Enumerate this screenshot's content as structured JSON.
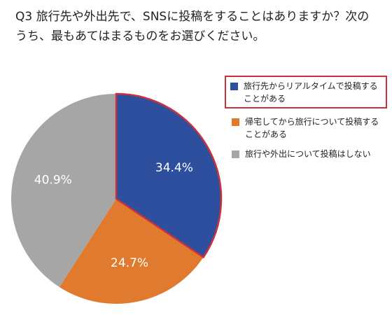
{
  "title": "Q3 旅行先や外出先で、SNSに投稿をすることはありますか？次のうち、最もあてはまるものをお選びください。",
  "colors": {
    "blue": "#2e4f9e",
    "orange": "#e07a2e",
    "gray": "#a6a6a6",
    "highlight": "#c8323c"
  },
  "chart_data": {
    "type": "pie",
    "title": "Q3 旅行先や外出先で、SNSに投稿をすることはありますか？次のうち、最もあてはまるものをお選びください。",
    "slices": [
      {
        "label": "旅行先からリアルタイムで投稿することがある",
        "value": 34.4,
        "value_label": "34.4%",
        "color": "#2e4f9e",
        "highlighted": true
      },
      {
        "label": "帰宅してから旅行について投稿することがある",
        "value": 24.7,
        "value_label": "24.7%",
        "color": "#e07a2e",
        "highlighted": false
      },
      {
        "label": "旅行や外出について投稿はしない",
        "value": 40.9,
        "value_label": "40.9%",
        "color": "#a6a6a6",
        "highlighted": false
      }
    ],
    "start": "12 o'clock",
    "direction": "clockwise",
    "legend": "right"
  }
}
